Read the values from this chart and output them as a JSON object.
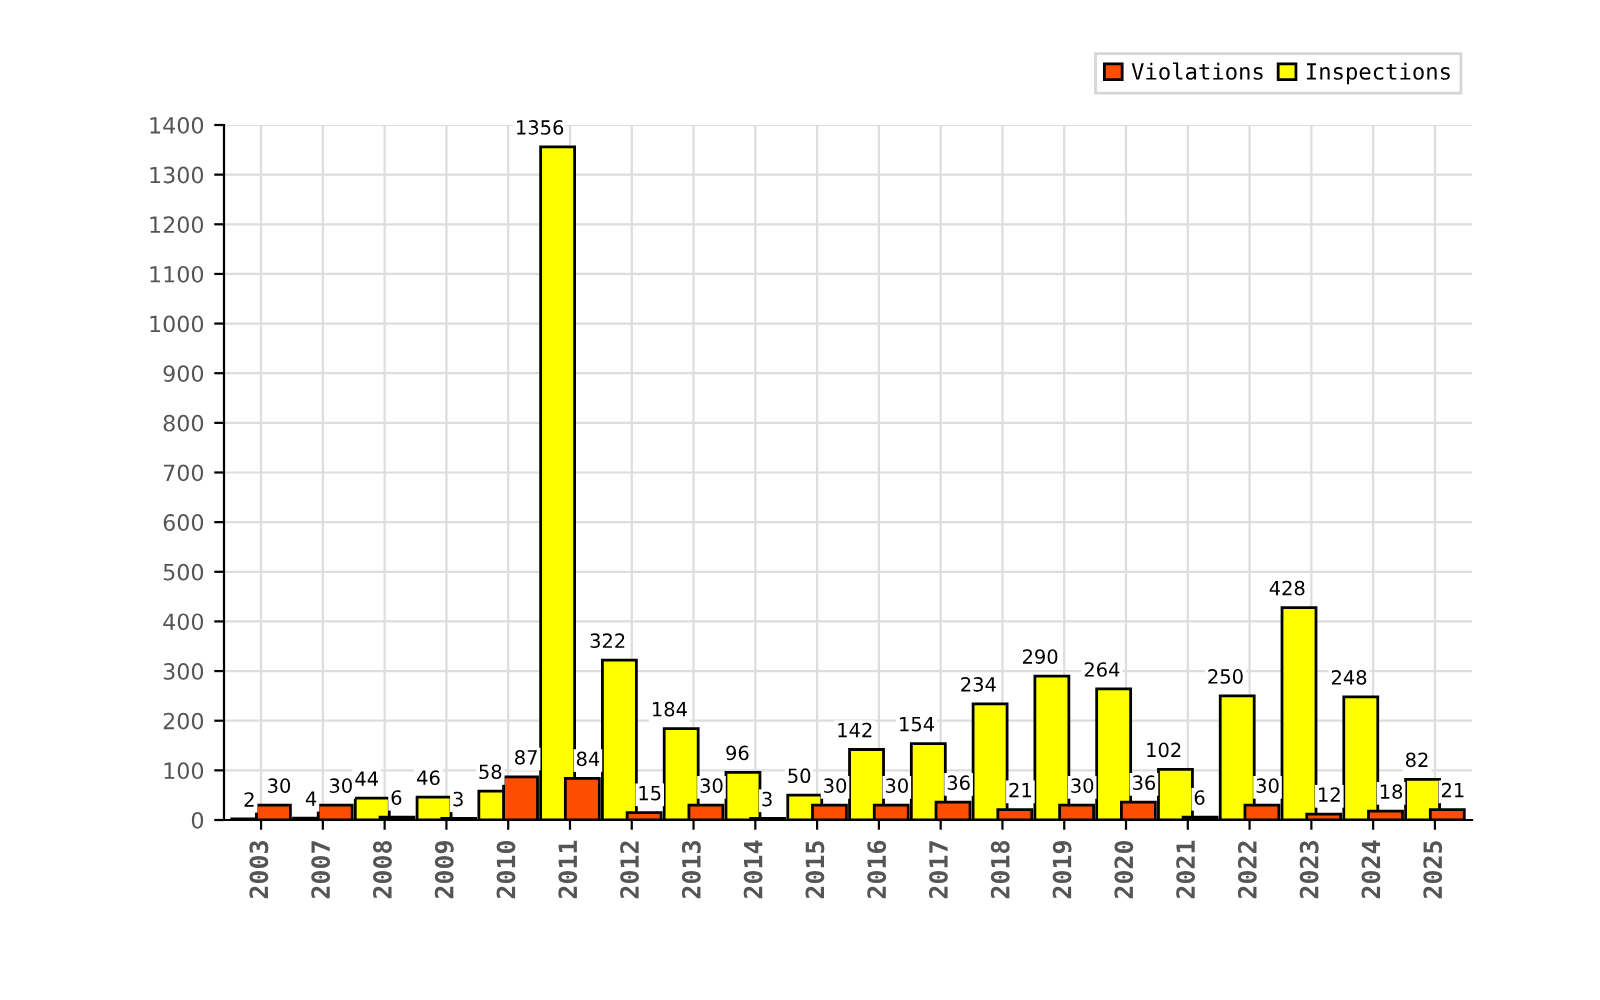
{
  "chart_data": {
    "type": "bar",
    "categories": [
      "2003",
      "2007",
      "2008",
      "2009",
      "2010",
      "2011",
      "2012",
      "2013",
      "2014",
      "2015",
      "2016",
      "2017",
      "2018",
      "2019",
      "2020",
      "2021",
      "2022",
      "2023",
      "2024",
      "2025"
    ],
    "series": [
      {
        "name": "Inspections",
        "color": "#ffff00",
        "values": [
          2,
          4,
          44,
          46,
          58,
          1356,
          322,
          184,
          96,
          50,
          142,
          154,
          234,
          290,
          264,
          102,
          250,
          428,
          248,
          82
        ]
      },
      {
        "name": "Violations",
        "color": "#ff4d00",
        "values": [
          30,
          30,
          6,
          3,
          87,
          84,
          15,
          30,
          3,
          30,
          30,
          36,
          21,
          30,
          36,
          6,
          30,
          12,
          18,
          21
        ]
      }
    ],
    "ylim": [
      0,
      1400
    ],
    "yticks": [
      0,
      100,
      200,
      300,
      400,
      500,
      600,
      700,
      800,
      900,
      1000,
      1100,
      1200,
      1300,
      1400
    ],
    "grid": true,
    "legend": "top right",
    "data_labels": true
  }
}
